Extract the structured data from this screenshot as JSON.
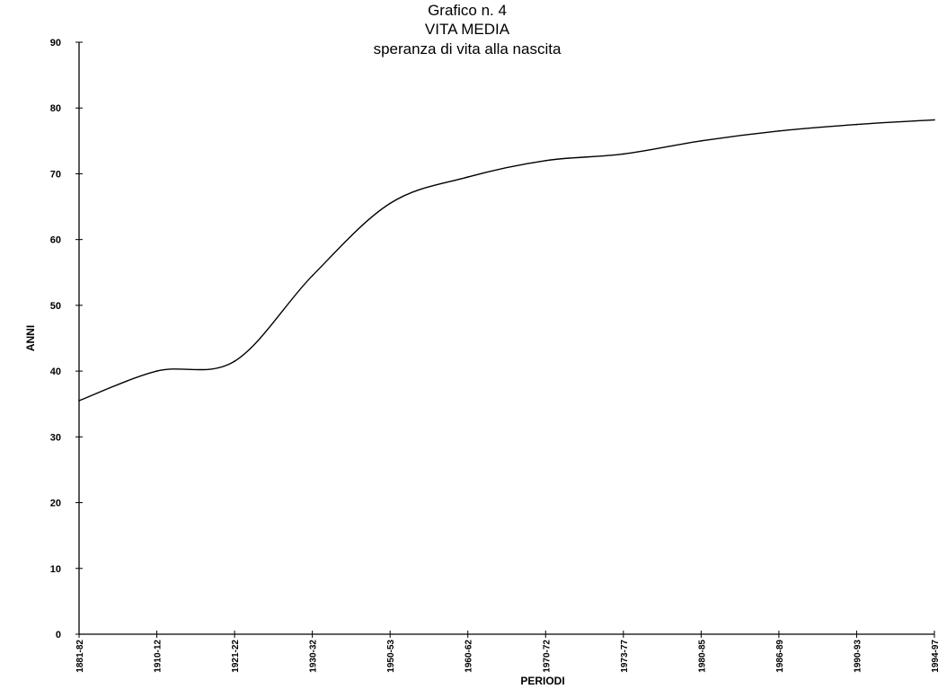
{
  "chart_data": {
    "type": "line",
    "title": "Grafico n. 4",
    "subtitle": "VITA MEDIA",
    "subtitle2": "speranza di vita alla nascita",
    "xlabel": "PERIODI",
    "ylabel": "ANNI",
    "ylim": [
      0,
      90
    ],
    "yticks": [
      0,
      10,
      20,
      30,
      40,
      50,
      60,
      70,
      80,
      90
    ],
    "grid": false,
    "categories": [
      "1881-82",
      "1910-12",
      "1921-22",
      "1930-32",
      "1950-53",
      "1960-62",
      "1970-72",
      "1973-77",
      "1980-85",
      "1986-89",
      "1990-93",
      "1994-97"
    ],
    "series": [
      {
        "values": [
          35.5,
          40.0,
          41.5,
          54.5,
          65.5,
          69.5,
          72.0,
          73.0,
          75.0,
          76.5,
          77.5,
          78.2
        ]
      }
    ],
    "line_color": "#000000"
  }
}
